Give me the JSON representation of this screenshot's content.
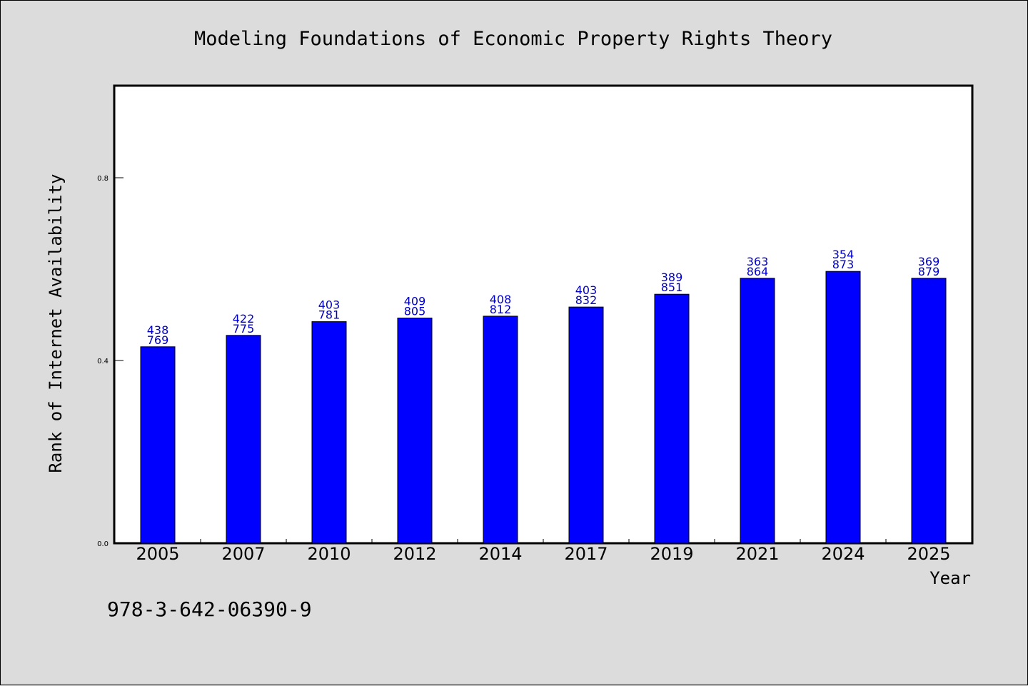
{
  "chart_data": {
    "type": "bar",
    "title": "Modeling Foundations of Economic Property Rights Theory",
    "xlabel": "Year",
    "ylabel": "Rank of Internet Availability",
    "categories": [
      "2005",
      "2007",
      "2010",
      "2012",
      "2014",
      "2017",
      "2019",
      "2021",
      "2024",
      "2025"
    ],
    "values": [
      0.43,
      0.455,
      0.485,
      0.493,
      0.497,
      0.517,
      0.545,
      0.58,
      0.595,
      0.58
    ],
    "label_top": [
      "438",
      "422",
      "403",
      "409",
      "408",
      "403",
      "389",
      "363",
      "354",
      "369"
    ],
    "label_bottom": [
      "769",
      "775",
      "781",
      "805",
      "812",
      "832",
      "851",
      "864",
      "873",
      "879"
    ],
    "ylim": [
      0,
      1.0
    ],
    "yticks": [
      0.0,
      0.4,
      0.8
    ],
    "ytick_labels": [
      "0.0",
      "0.4",
      "0.8"
    ],
    "bar_color": "#0000ff",
    "label_color": "#0000cc",
    "grid": false,
    "legend": "none"
  },
  "footer": {
    "isbn": "978-3-642-06390-9"
  }
}
